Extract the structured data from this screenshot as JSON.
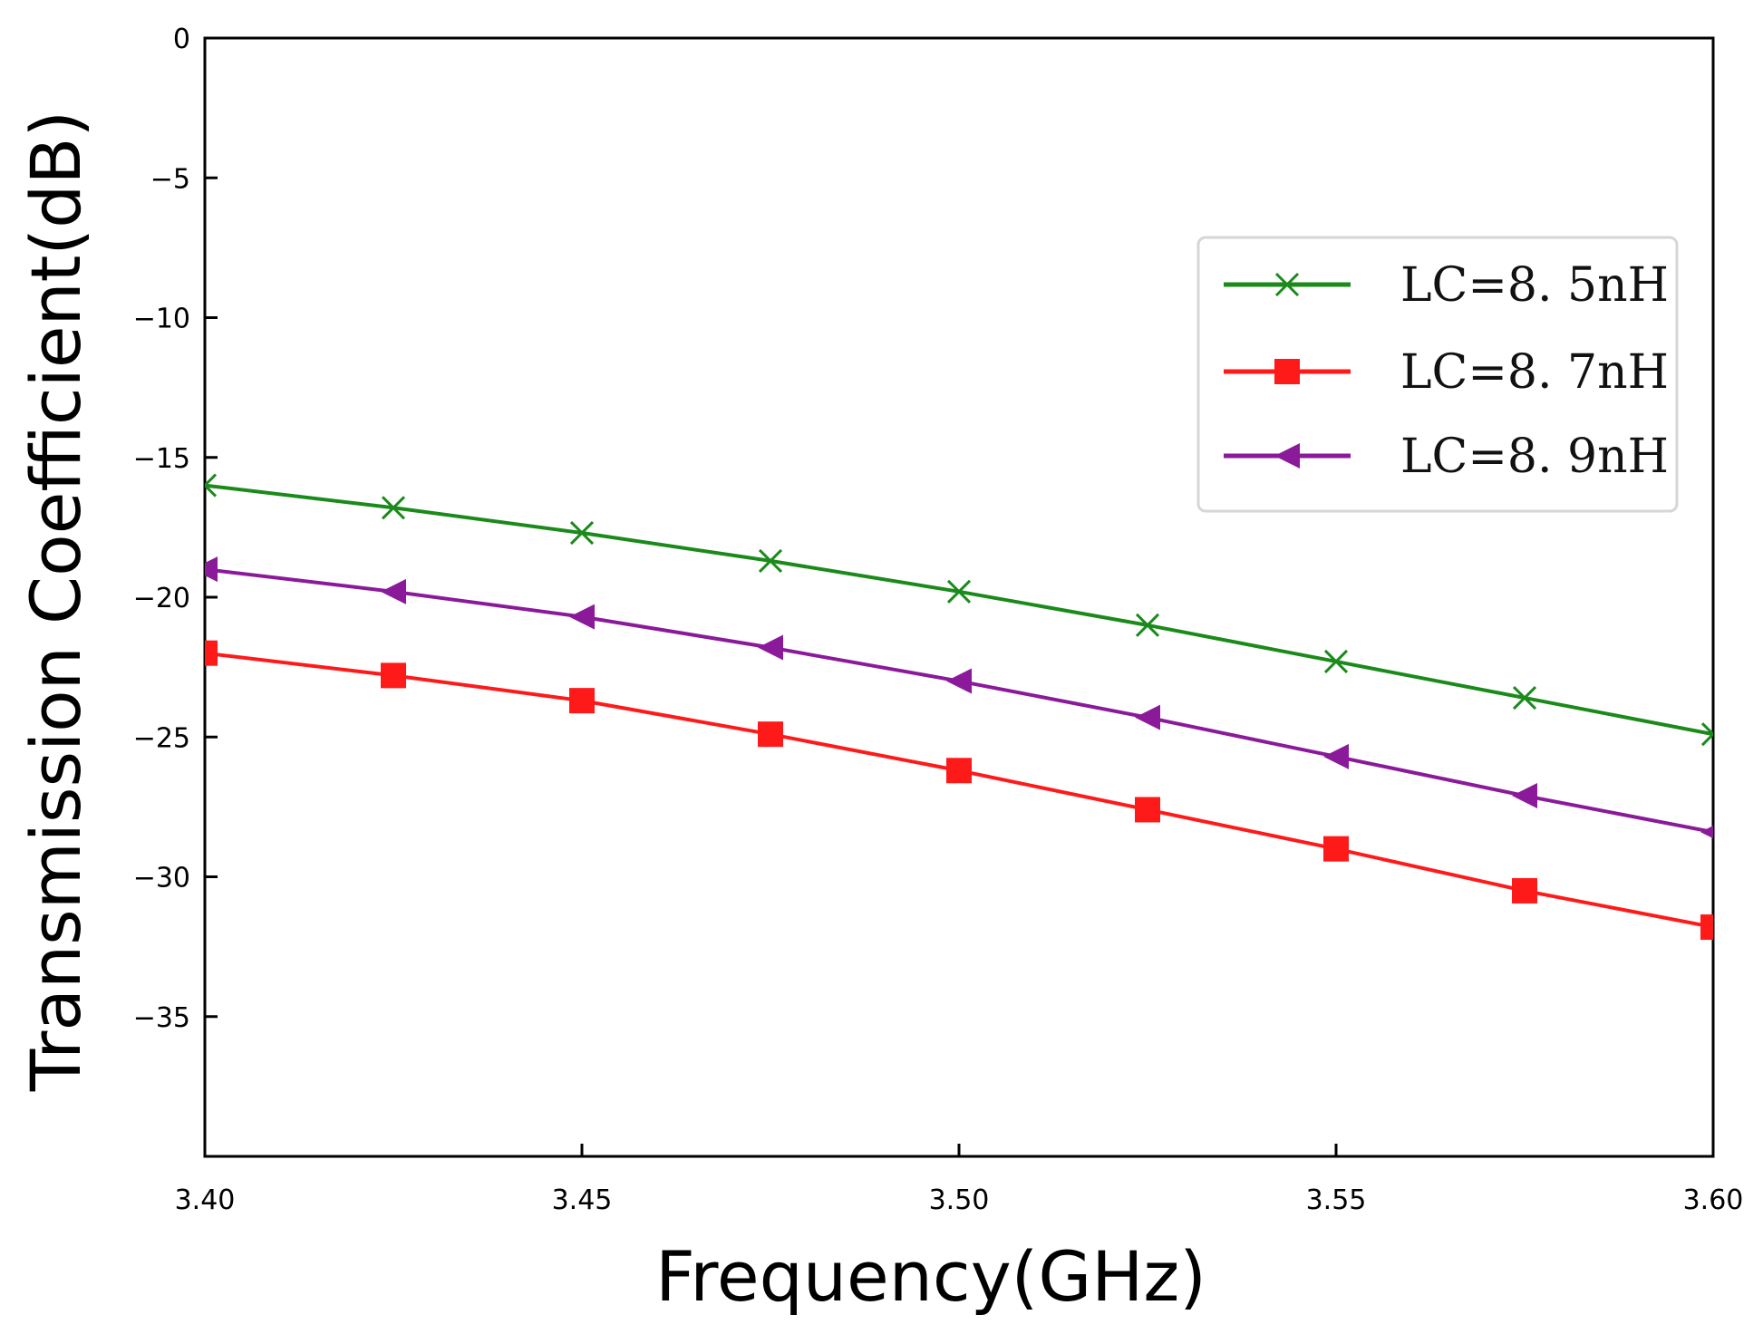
{
  "chart_data": {
    "type": "line",
    "title": "",
    "xlabel": "Frequency(GHz)",
    "ylabel": "Transmission Coefficient(dB)",
    "xlim": [
      3.4,
      3.6
    ],
    "ylim": [
      -40,
      0
    ],
    "xticks": [
      3.4,
      3.45,
      3.5,
      3.55,
      3.6
    ],
    "xtick_labels": [
      "3.40",
      "3.45",
      "3.50",
      "3.55",
      "3.60"
    ],
    "yticks": [
      0,
      -5,
      -10,
      -15,
      -20,
      -25,
      -30,
      -35
    ],
    "ytick_labels": [
      "0",
      "−5",
      "−10",
      "−15",
      "−20",
      "−25",
      "−30",
      "−35"
    ],
    "grid": false,
    "legend_position": "top-right",
    "x": [
      3.4,
      3.425,
      3.45,
      3.475,
      3.5,
      3.525,
      3.55,
      3.575,
      3.6
    ],
    "series": [
      {
        "name": "LC=8. 5nH",
        "color": "#1a8a1a",
        "marker": "x",
        "values": [
          -16.0,
          -16.8,
          -17.7,
          -18.7,
          -19.8,
          -21.0,
          -22.3,
          -23.6,
          -24.9
        ]
      },
      {
        "name": "LC=8. 7nH",
        "color": "#ff1a1a",
        "marker": "square",
        "values": [
          -22.0,
          -22.8,
          -23.7,
          -24.9,
          -26.2,
          -27.6,
          -29.0,
          -30.5,
          -31.8
        ]
      },
      {
        "name": "LC=8. 9nH",
        "color": "#8b1a9b",
        "marker": "triangle-left",
        "values": [
          -19.0,
          -19.8,
          -20.7,
          -21.8,
          -23.0,
          -24.3,
          -25.7,
          -27.1,
          -28.4
        ]
      }
    ]
  }
}
